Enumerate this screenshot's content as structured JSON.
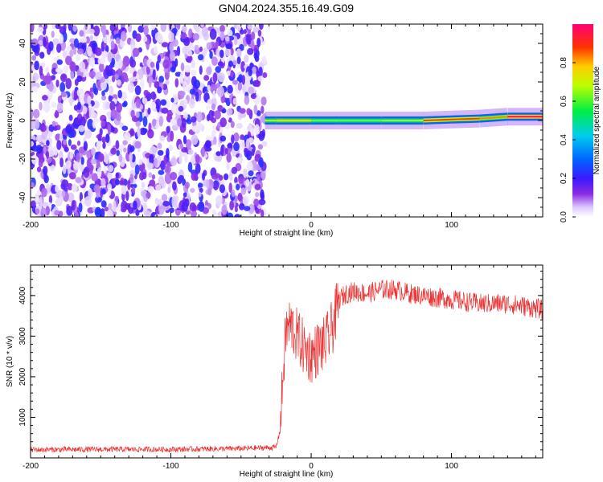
{
  "title": "GN04.2024.355.16.49.G09",
  "chart_data": [
    {
      "type": "heatmap",
      "title": "GN04.2024.355.16.49.G09",
      "xlabel": "Height of straight line (km)",
      "ylabel": "Frequency (Hz)",
      "xlim": [
        -200,
        165
      ],
      "ylim": [
        -50,
        50
      ],
      "x_ticks": [
        "-200",
        "-100",
        "0",
        "100"
      ],
      "y_ticks": [
        "-40",
        "-20",
        "0",
        "20",
        "40"
      ],
      "noise_region_x": [
        -200,
        -33
      ],
      "signal_track": [
        {
          "x": -33,
          "freq": 0,
          "amp": 0.35
        },
        {
          "x": -25,
          "freq": 0,
          "amp": 0.7
        },
        {
          "x": 0,
          "freq": 0,
          "amp": 0.45
        },
        {
          "x": 20,
          "freq": 0,
          "amp": 0.4
        },
        {
          "x": 50,
          "freq": 0,
          "amp": 0.45
        },
        {
          "x": 80,
          "freq": 0,
          "amp": 0.5
        },
        {
          "x": 100,
          "freq": 0.5,
          "amp": 0.85
        },
        {
          "x": 120,
          "freq": 1,
          "amp": 0.5
        },
        {
          "x": 140,
          "freq": 2,
          "amp": 0.75
        },
        {
          "x": 165,
          "freq": 2,
          "amp": 0.8
        }
      ],
      "colorbar": {
        "label": "Normalized spectral amplitude",
        "range": [
          0,
          1
        ],
        "ticks": [
          "0.0",
          "0.2",
          "0.4",
          "0.6",
          "0.8"
        ]
      }
    },
    {
      "type": "line",
      "xlabel": "Height of straight line (km)",
      "ylabel": "SNR (10 * v/v)",
      "xlim": [
        -200,
        165
      ],
      "ylim": [
        0,
        4750
      ],
      "x_ticks": [
        "-200",
        "-100",
        "0",
        "100"
      ],
      "y_ticks": [
        "1000",
        "2000",
        "3000",
        "4000"
      ],
      "color": "#ee3333",
      "series": [
        {
          "x": [
            -200,
            -150,
            -100,
            -50,
            -25,
            -22,
            -20,
            -18,
            -15,
            -10,
            -5,
            0,
            5,
            10,
            15,
            18,
            20,
            25,
            30,
            40,
            50,
            60,
            70,
            80,
            90,
            100,
            110,
            120,
            130,
            140,
            150,
            165
          ],
          "values": [
            200,
            210,
            210,
            230,
            260,
            700,
            2100,
            3100,
            3300,
            3000,
            2700,
            2500,
            2700,
            2800,
            3200,
            3600,
            3900,
            4050,
            4100,
            4050,
            4150,
            4150,
            4050,
            4000,
            3950,
            3900,
            3850,
            3800,
            3800,
            3800,
            3750,
            3650
          ]
        }
      ]
    }
  ]
}
